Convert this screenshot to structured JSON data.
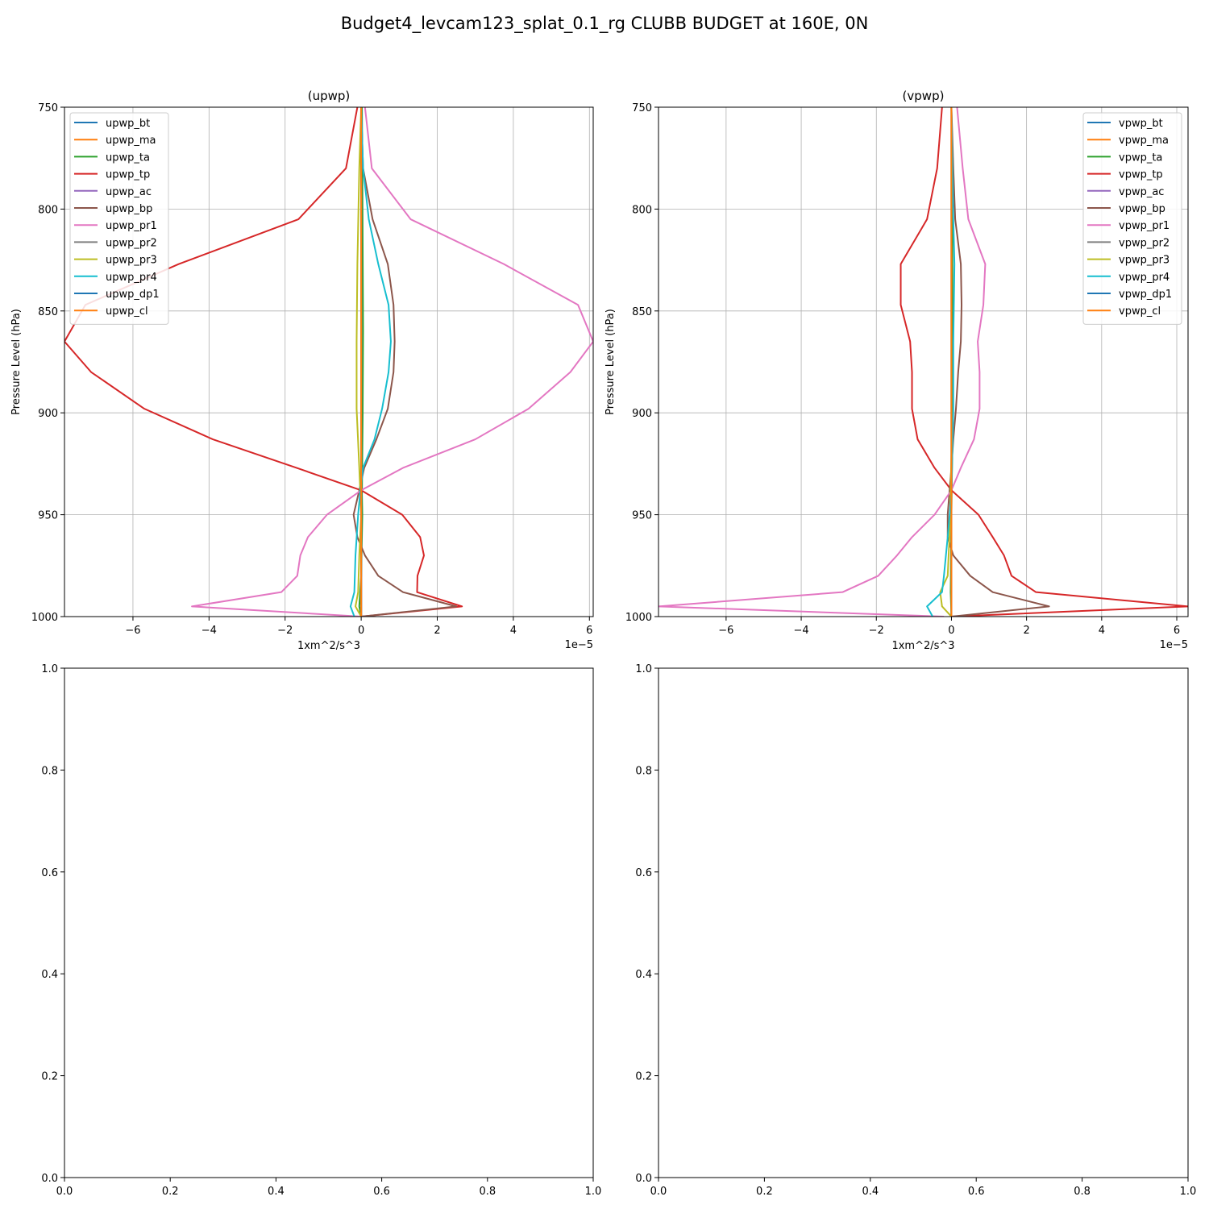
{
  "figure": {
    "title": "Budget4_levcam123_splat_0.1_rg CLUBB BUDGET at 160E, 0N"
  },
  "chart_data": [
    {
      "type": "line",
      "title": "(upwp)",
      "xlabel": "1xm^2/s^3",
      "ylabel": "Pressure Level (hPa)",
      "x_offset_text": "1e−5",
      "xlim": [
        -7.8,
        6.1
      ],
      "ylim": [
        1000,
        750
      ],
      "x_ticks": [
        -6,
        -4,
        -2,
        0,
        2,
        4,
        6
      ],
      "x_tick_labels": [
        "−6",
        "−4",
        "−2",
        "0",
        "2",
        "4",
        "6"
      ],
      "y_ticks": [
        750,
        800,
        850,
        900,
        950,
        1000
      ],
      "y_tick_labels": [
        "750",
        "800",
        "850",
        "900",
        "950",
        "1000"
      ],
      "grid": true,
      "legend": "upper-left",
      "series": [
        {
          "name": "upwp_bt",
          "color": "#1f77b4",
          "points": [
            [
              0,
              750
            ],
            [
              0,
              1000
            ]
          ]
        },
        {
          "name": "upwp_ma",
          "color": "#ff7f0e",
          "points": [
            [
              0,
              750
            ],
            [
              0,
              1000
            ]
          ]
        },
        {
          "name": "upwp_ta",
          "color": "#2ca02c",
          "points": [
            [
              0.02,
              750
            ],
            [
              0.03,
              780
            ],
            [
              0.05,
              860
            ],
            [
              0.04,
              900
            ],
            [
              0.02,
              940
            ],
            [
              0.03,
              950
            ],
            [
              0,
              980
            ],
            [
              -0.05,
              995
            ],
            [
              0,
              1000
            ]
          ]
        },
        {
          "name": "upwp_tp",
          "color": "#d62728",
          "points": [
            [
              -0.1,
              750
            ],
            [
              -0.4,
              780
            ],
            [
              -1.65,
              805
            ],
            [
              -4.8,
              827
            ],
            [
              -7.25,
              847
            ],
            [
              -7.8,
              865
            ],
            [
              -7.1,
              880
            ],
            [
              -5.7,
              898
            ],
            [
              -3.9,
              913
            ],
            [
              -1.7,
              927
            ],
            [
              0,
              938
            ],
            [
              1.08,
              950
            ],
            [
              1.55,
              961
            ],
            [
              1.65,
              970
            ],
            [
              1.48,
              980
            ],
            [
              1.47,
              988
            ],
            [
              2.65,
              995
            ],
            [
              0,
              1000
            ]
          ]
        },
        {
          "name": "upwp_ac",
          "color": "#9467bd",
          "points": [
            [
              0,
              750
            ],
            [
              0,
              1000
            ]
          ]
        },
        {
          "name": "upwp_bp",
          "color": "#8c564b",
          "points": [
            [
              0,
              750
            ],
            [
              0.05,
              780
            ],
            [
              0.3,
              805
            ],
            [
              0.7,
              827
            ],
            [
              0.85,
              847
            ],
            [
              0.88,
              865
            ],
            [
              0.85,
              880
            ],
            [
              0.7,
              898
            ],
            [
              0.4,
              913
            ],
            [
              0.08,
              927
            ],
            [
              -0.05,
              938
            ],
            [
              -0.2,
              950
            ],
            [
              -0.1,
              961
            ],
            [
              0.1,
              970
            ],
            [
              0.45,
              980
            ],
            [
              1.1,
              988
            ],
            [
              2.5,
              995
            ],
            [
              0,
              1000
            ]
          ]
        },
        {
          "name": "upwp_pr1",
          "color": "#e377c2",
          "points": [
            [
              0.1,
              750
            ],
            [
              0.28,
              780
            ],
            [
              1.3,
              805
            ],
            [
              3.75,
              827
            ],
            [
              5.7,
              847
            ],
            [
              6.1,
              865
            ],
            [
              5.5,
              880
            ],
            [
              4.4,
              898
            ],
            [
              3.0,
              913
            ],
            [
              1.1,
              927
            ],
            [
              0,
              938
            ],
            [
              -0.9,
              950
            ],
            [
              -1.4,
              961
            ],
            [
              -1.6,
              970
            ],
            [
              -1.68,
              980
            ],
            [
              -2.1,
              988
            ],
            [
              -4.45,
              995
            ],
            [
              0,
              1000
            ]
          ]
        },
        {
          "name": "upwp_pr2",
          "color": "#7f7f7f",
          "points": [
            [
              0,
              750
            ],
            [
              0,
              1000
            ]
          ]
        },
        {
          "name": "upwp_pr3",
          "color": "#bcbd22",
          "points": [
            [
              0,
              750
            ],
            [
              -0.05,
              780
            ],
            [
              -0.1,
              827
            ],
            [
              -0.12,
              865
            ],
            [
              -0.12,
              898
            ],
            [
              -0.05,
              927
            ],
            [
              0,
              950
            ],
            [
              -0.05,
              970
            ],
            [
              -0.08,
              988
            ],
            [
              -0.15,
              995
            ],
            [
              0,
              1000
            ]
          ]
        },
        {
          "name": "upwp_pr4",
          "color": "#17becf",
          "points": [
            [
              0,
              750
            ],
            [
              0.05,
              780
            ],
            [
              0.2,
              805
            ],
            [
              0.45,
              827
            ],
            [
              0.72,
              847
            ],
            [
              0.78,
              865
            ],
            [
              0.72,
              880
            ],
            [
              0.55,
              898
            ],
            [
              0.35,
              913
            ],
            [
              0.05,
              927
            ],
            [
              -0.02,
              938
            ],
            [
              -0.08,
              950
            ],
            [
              -0.15,
              970
            ],
            [
              -0.18,
              988
            ],
            [
              -0.28,
              995
            ],
            [
              -0.18,
              1000
            ]
          ]
        },
        {
          "name": "upwp_dp1",
          "color": "#1f77b4",
          "points": [
            [
              0,
              750
            ],
            [
              0,
              1000
            ]
          ]
        },
        {
          "name": "upwp_cl",
          "color": "#ff7f0e",
          "points": [
            [
              0,
              750
            ],
            [
              0,
              1000
            ]
          ]
        }
      ]
    },
    {
      "type": "line",
      "title": "(vpwp)",
      "xlabel": "1xm^2/s^3",
      "ylabel": "Pressure Level (hPa)",
      "x_offset_text": "1e−5",
      "xlim": [
        -7.8,
        6.3
      ],
      "ylim": [
        1000,
        750
      ],
      "x_ticks": [
        -6,
        -4,
        -2,
        0,
        2,
        4,
        6
      ],
      "x_tick_labels": [
        "−6",
        "−4",
        "−2",
        "0",
        "2",
        "4",
        "6"
      ],
      "y_ticks": [
        750,
        800,
        850,
        900,
        950,
        1000
      ],
      "y_tick_labels": [
        "750",
        "800",
        "850",
        "900",
        "950",
        "1000"
      ],
      "grid": true,
      "legend": "upper-right",
      "series": [
        {
          "name": "vpwp_bt",
          "color": "#1f77b4",
          "points": [
            [
              0,
              750
            ],
            [
              0,
              1000
            ]
          ]
        },
        {
          "name": "vpwp_ma",
          "color": "#ff7f0e",
          "points": [
            [
              0,
              750
            ],
            [
              0,
              1000
            ]
          ]
        },
        {
          "name": "vpwp_ta",
          "color": "#2ca02c",
          "points": [
            [
              0,
              750
            ],
            [
              0.02,
              800
            ],
            [
              0.03,
              860
            ],
            [
              0.02,
              920
            ],
            [
              0,
              950
            ],
            [
              -0.02,
              988
            ],
            [
              0,
              1000
            ]
          ]
        },
        {
          "name": "vpwp_tp",
          "color": "#d62728",
          "points": [
            [
              -0.25,
              750
            ],
            [
              -0.38,
              780
            ],
            [
              -0.65,
              805
            ],
            [
              -1.35,
              827
            ],
            [
              -1.35,
              847
            ],
            [
              -1.1,
              865
            ],
            [
              -1.05,
              880
            ],
            [
              -1.05,
              898
            ],
            [
              -0.9,
              913
            ],
            [
              -0.45,
              927
            ],
            [
              0,
              938
            ],
            [
              0.72,
              950
            ],
            [
              1.1,
              961
            ],
            [
              1.4,
              970
            ],
            [
              1.6,
              980
            ],
            [
              2.25,
              988
            ],
            [
              6.3,
              995
            ],
            [
              0,
              1000
            ]
          ]
        },
        {
          "name": "vpwp_ac",
          "color": "#9467bd",
          "points": [
            [
              0,
              750
            ],
            [
              0,
              1000
            ]
          ]
        },
        {
          "name": "vpwp_bp",
          "color": "#8c564b",
          "points": [
            [
              0,
              750
            ],
            [
              0.05,
              780
            ],
            [
              0.1,
              805
            ],
            [
              0.25,
              827
            ],
            [
              0.27,
              847
            ],
            [
              0.25,
              865
            ],
            [
              0.18,
              880
            ],
            [
              0.12,
              898
            ],
            [
              0.05,
              913
            ],
            [
              0,
              927
            ],
            [
              -0.05,
              938
            ],
            [
              -0.1,
              950
            ],
            [
              -0.1,
              961
            ],
            [
              0.05,
              970
            ],
            [
              0.5,
              980
            ],
            [
              1.1,
              988
            ],
            [
              2.6,
              995
            ],
            [
              0,
              1000
            ]
          ]
        },
        {
          "name": "vpwp_pr1",
          "color": "#e377c2",
          "points": [
            [
              0.15,
              750
            ],
            [
              0.3,
              780
            ],
            [
              0.45,
              805
            ],
            [
              0.9,
              827
            ],
            [
              0.85,
              847
            ],
            [
              0.7,
              865
            ],
            [
              0.75,
              880
            ],
            [
              0.75,
              898
            ],
            [
              0.6,
              913
            ],
            [
              0.25,
              927
            ],
            [
              0,
              938
            ],
            [
              -0.45,
              950
            ],
            [
              -1.05,
              961
            ],
            [
              -1.45,
              970
            ],
            [
              -1.95,
              980
            ],
            [
              -2.9,
              988
            ],
            [
              -7.8,
              995
            ],
            [
              -0.2,
              1000
            ]
          ]
        },
        {
          "name": "vpwp_pr2",
          "color": "#7f7f7f",
          "points": [
            [
              0,
              750
            ],
            [
              0,
              1000
            ]
          ]
        },
        {
          "name": "vpwp_pr3",
          "color": "#bcbd22",
          "points": [
            [
              0,
              750
            ],
            [
              0,
              850
            ],
            [
              0,
              920
            ],
            [
              -0.05,
              960
            ],
            [
              -0.1,
              980
            ],
            [
              -0.3,
              988
            ],
            [
              -0.25,
              995
            ],
            [
              0,
              1000
            ]
          ]
        },
        {
          "name": "vpwp_pr4",
          "color": "#17becf",
          "points": [
            [
              0,
              750
            ],
            [
              0.05,
              805
            ],
            [
              0.08,
              827
            ],
            [
              0.05,
              865
            ],
            [
              0.05,
              898
            ],
            [
              0,
              940
            ],
            [
              -0.1,
              961
            ],
            [
              -0.2,
              980
            ],
            [
              -0.25,
              988
            ],
            [
              -0.65,
              995
            ],
            [
              -0.5,
              1000
            ]
          ]
        },
        {
          "name": "vpwp_dp1",
          "color": "#1f77b4",
          "points": [
            [
              0,
              750
            ],
            [
              0,
              1000
            ]
          ]
        },
        {
          "name": "vpwp_cl",
          "color": "#ff7f0e",
          "points": [
            [
              0,
              750
            ],
            [
              0,
              1000
            ]
          ]
        }
      ]
    },
    {
      "type": "line",
      "title": "",
      "xlim": [
        0,
        1
      ],
      "ylim": [
        0,
        1
      ],
      "x_ticks": [
        0,
        0.2,
        0.4,
        0.6,
        0.8,
        1.0
      ],
      "x_tick_labels": [
        "0.0",
        "0.2",
        "0.4",
        "0.6",
        "0.8",
        "1.0"
      ],
      "y_ticks": [
        0,
        0.2,
        0.4,
        0.6,
        0.8,
        1.0
      ],
      "y_tick_labels": [
        "0.0",
        "0.2",
        "0.4",
        "0.6",
        "0.8",
        "1.0"
      ],
      "grid": false,
      "series": []
    },
    {
      "type": "line",
      "title": "",
      "xlim": [
        0,
        1
      ],
      "ylim": [
        0,
        1
      ],
      "x_ticks": [
        0,
        0.2,
        0.4,
        0.6,
        0.8,
        1.0
      ],
      "x_tick_labels": [
        "0.0",
        "0.2",
        "0.4",
        "0.6",
        "0.8",
        "1.0"
      ],
      "y_ticks": [
        0,
        0.2,
        0.4,
        0.6,
        0.8,
        1.0
      ],
      "y_tick_labels": [
        "0.0",
        "0.2",
        "0.4",
        "0.6",
        "0.8",
        "1.0"
      ],
      "grid": false,
      "series": []
    }
  ]
}
